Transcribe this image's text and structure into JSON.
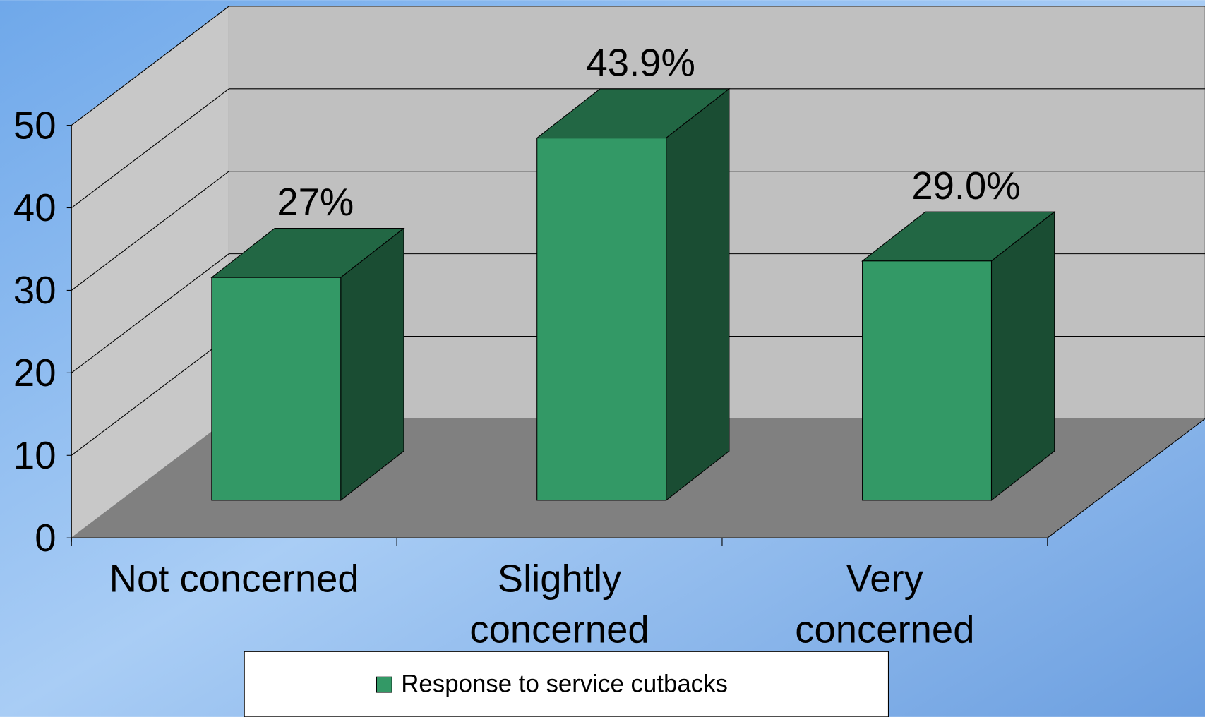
{
  "chart_data": {
    "type": "bar3d",
    "categories": [
      "Not concerned",
      "Slightly concerned",
      "Very concerned"
    ],
    "series": [
      {
        "name": "Response to service cutbacks",
        "color": "#339966",
        "values": [
          27,
          43.9,
          29.0
        ],
        "value_labels": [
          "27%",
          "43.9%",
          "29.0%"
        ]
      }
    ],
    "ylim": [
      0,
      50
    ],
    "yticks": [
      0,
      10,
      20,
      30,
      40,
      50
    ],
    "grid": true,
    "legend": "bottom"
  }
}
